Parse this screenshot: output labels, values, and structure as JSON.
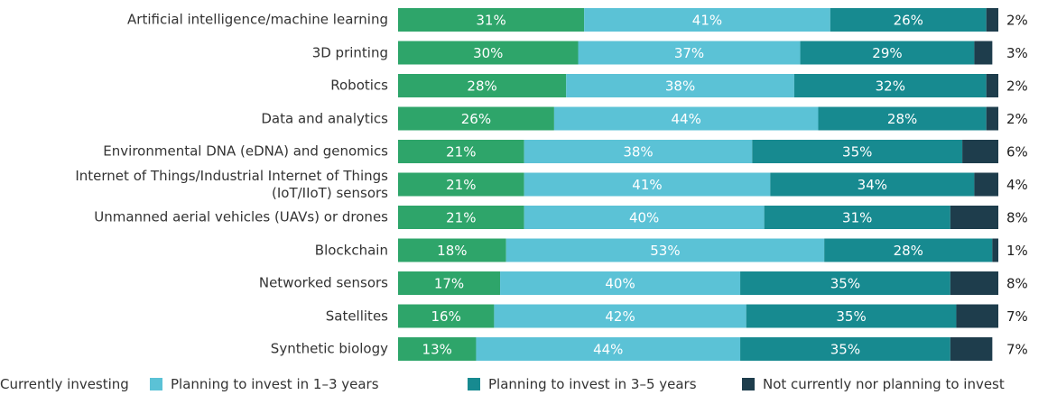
{
  "chart_data": {
    "type": "stacked-bar",
    "categories": [
      "Artificial intelligence/machine learning",
      "3D printing",
      "Robotics",
      "Data and analytics",
      "Environmental DNA (eDNA) and genomics",
      "Internet of Things/Industrial Internet of Things\n(IoT/IIoT) sensors",
      "Unmanned aerial vehicles (UAVs) or drones",
      "Blockchain",
      "Networked sensors",
      "Satellites",
      "Synthetic biology"
    ],
    "series": [
      {
        "name": "Currently investing",
        "color": "#2ea56a",
        "values": [
          31,
          30,
          28,
          26,
          21,
          21,
          21,
          18,
          17,
          16,
          13
        ],
        "value_labels": [
          "31%",
          "30%",
          "28%",
          "26%",
          "21%",
          "21%",
          "21%",
          "18%",
          "17%",
          "16%",
          "13%"
        ]
      },
      {
        "name": "Planning to invest in 1–3 years",
        "color": "#5bc2d6",
        "values": [
          41,
          37,
          38,
          44,
          38,
          41,
          40,
          53,
          40,
          42,
          44
        ],
        "value_labels": [
          "41%",
          "37%",
          "38%",
          "44%",
          "38%",
          "41%",
          "40%",
          "53%",
          "40%",
          "42%",
          "44%"
        ]
      },
      {
        "name": "Planning to invest in 3–5 years",
        "color": "#178a90",
        "values": [
          26,
          29,
          32,
          28,
          35,
          34,
          31,
          28,
          35,
          35,
          35
        ],
        "value_labels": [
          "26%",
          "29%",
          "32%",
          "28%",
          "35%",
          "34%",
          "31%",
          "28%",
          "35%",
          "35%",
          "35%"
        ]
      },
      {
        "name": "Not currently nor planning to invest",
        "color": "#1e3d4c",
        "values": [
          2,
          3,
          2,
          2,
          6,
          4,
          8,
          1,
          8,
          7,
          7
        ],
        "value_labels": [
          "2%",
          "3%",
          "2%",
          "2%",
          "6%",
          "4%",
          "8%",
          "1%",
          "8%",
          "7%",
          "7%"
        ]
      }
    ],
    "xlim": [
      0,
      100
    ],
    "legend": "bottom"
  }
}
